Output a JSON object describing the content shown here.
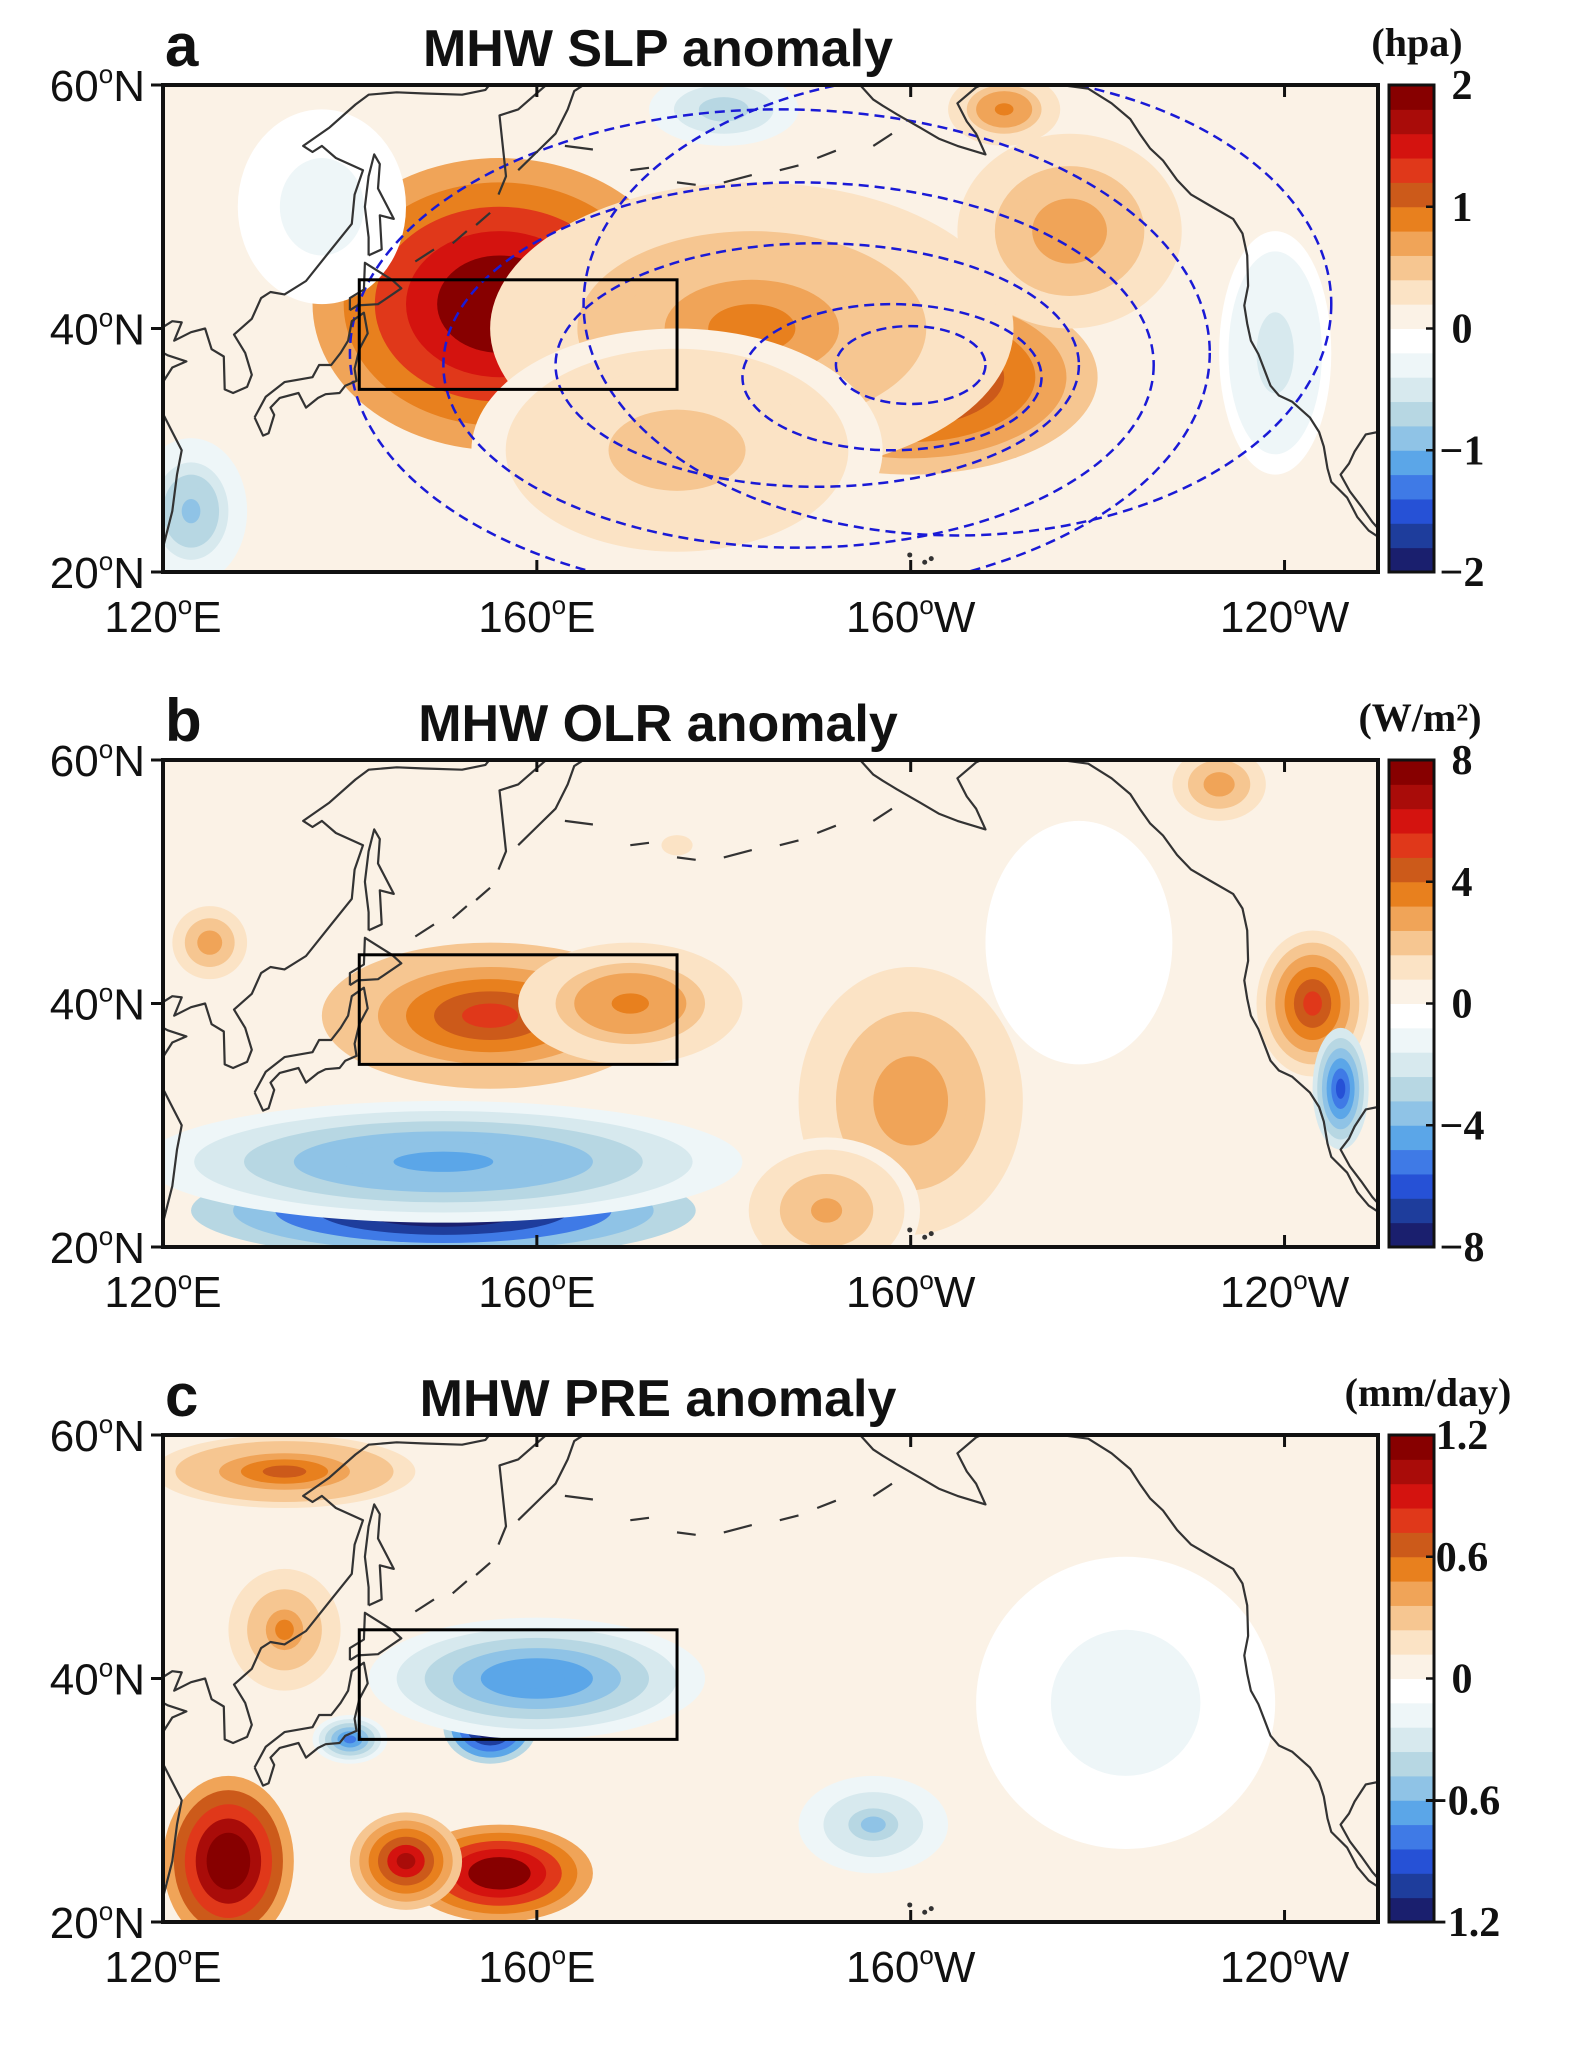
{
  "figure": {
    "panels": [
      {
        "letter": "a",
        "title": "MHW SLP anomaly",
        "units": "(hpa)",
        "colorbar": {
          "min": -2,
          "max": 2,
          "labels": [
            "2",
            "1",
            "0",
            "−1",
            "−2"
          ],
          "label_values": [
            2,
            1,
            0,
            -1,
            -2
          ]
        },
        "blobs": [
          {
            "lon": 156,
            "lat": 42,
            "rx": 20,
            "ry": 12,
            "value": 2.2
          },
          {
            "lon": 200,
            "lat": 36,
            "rx": 20,
            "ry": 8,
            "value": 1.4
          },
          {
            "lon": 183,
            "lat": 40,
            "rx": 28,
            "ry": 12,
            "value": 0.8
          },
          {
            "lon": 217,
            "lat": 48,
            "rx": 12,
            "ry": 8,
            "value": 0.7
          },
          {
            "lon": 175,
            "lat": 30,
            "rx": 22,
            "ry": 10,
            "value": 0.5
          },
          {
            "lon": 210,
            "lat": 58,
            "rx": 6,
            "ry": 3,
            "value": 0.9
          },
          {
            "lon": 180,
            "lat": 58,
            "rx": 8,
            "ry": 3,
            "value": -0.8
          },
          {
            "lon": 239,
            "lat": 38,
            "rx": 6,
            "ry": 10,
            "value": -0.5
          },
          {
            "lon": 123,
            "lat": 25,
            "rx": 6,
            "ry": 6,
            "value": -0.9
          },
          {
            "lon": 137,
            "lat": 50,
            "rx": 9,
            "ry": 8,
            "value": -0.3
          }
        ],
        "contours": [
          {
            "lon": 200,
            "lat": 37,
            "rx": 8,
            "ry": 3.2
          },
          {
            "lon": 198,
            "lat": 36,
            "rx": 16,
            "ry": 6
          },
          {
            "lon": 190,
            "lat": 37,
            "rx": 28,
            "ry": 10
          },
          {
            "lon": 188,
            "lat": 37,
            "rx": 38,
            "ry": 15
          },
          {
            "lon": 186,
            "lat": 38,
            "rx": 46,
            "ry": 20
          },
          {
            "lon": 205,
            "lat": 42,
            "rx": 40,
            "ry": 19
          }
        ]
      },
      {
        "letter": "b",
        "title": "MHW OLR anomaly",
        "units": "(W/m²)",
        "colorbar": {
          "min": -8,
          "max": 8,
          "labels": [
            "8",
            "4",
            "0",
            "−4",
            "−8"
          ],
          "label_values": [
            8,
            4,
            0,
            -4,
            -8
          ]
        },
        "blobs": [
          {
            "lon": 155,
            "lat": 39,
            "rx": 18,
            "ry": 6,
            "value": 5.5
          },
          {
            "lon": 170,
            "lat": 40,
            "rx": 12,
            "ry": 5,
            "value": 3.5
          },
          {
            "lon": 200,
            "lat": 32,
            "rx": 12,
            "ry": 11,
            "value": 3.0
          },
          {
            "lon": 191,
            "lat": 23,
            "rx": 10,
            "ry": 6,
            "value": 2.5
          },
          {
            "lon": 243,
            "lat": 40,
            "rx": 6,
            "ry": 6,
            "value": 5.0
          },
          {
            "lon": 233,
            "lat": 58,
            "rx": 5,
            "ry": 3,
            "value": 3.0
          },
          {
            "lon": 125,
            "lat": 45,
            "rx": 4,
            "ry": 3,
            "value": 3.0
          },
          {
            "lon": 150,
            "lat": 23,
            "rx": 27,
            "ry": 4,
            "value": -9.0
          },
          {
            "lon": 150,
            "lat": 27,
            "rx": 32,
            "ry": 5,
            "value": -4.5
          },
          {
            "lon": 246,
            "lat": 33,
            "rx": 3,
            "ry": 5,
            "value": -6.0
          },
          {
            "lon": 175,
            "lat": 53,
            "rx": 10,
            "ry": 5,
            "value": 0.8
          },
          {
            "lon": 218,
            "lat": 45,
            "rx": 10,
            "ry": 10,
            "value": -0.8
          }
        ]
      },
      {
        "letter": "c",
        "title": "MHW PRE anomaly",
        "units": "(mm/day)",
        "colorbar": {
          "min": -1.2,
          "max": 1.2,
          "labels": [
            "1.2",
            "0.6",
            "0",
            "−0.6",
            "−1.2"
          ],
          "label_values": [
            1.2,
            0.6,
            0,
            -0.6,
            -1.2
          ]
        },
        "blobs": [
          {
            "lon": 127,
            "lat": 25,
            "rx": 7,
            "ry": 7,
            "value": 1.4
          },
          {
            "lon": 156,
            "lat": 24,
            "rx": 10,
            "ry": 4,
            "value": 1.3
          },
          {
            "lon": 146,
            "lat": 25,
            "rx": 6,
            "ry": 4,
            "value": 1.0
          },
          {
            "lon": 133,
            "lat": 57,
            "rx": 14,
            "ry": 3,
            "value": 0.6
          },
          {
            "lon": 133,
            "lat": 44,
            "rx": 6,
            "ry": 5,
            "value": 0.5
          },
          {
            "lon": 155,
            "lat": 36,
            "rx": 5,
            "ry": 3,
            "value": -1.4
          },
          {
            "lon": 168,
            "lat": 40,
            "rx": 7,
            "ry": 3,
            "value": -1.3
          },
          {
            "lon": 160,
            "lat": 40,
            "rx": 18,
            "ry": 5,
            "value": -0.7
          },
          {
            "lon": 140,
            "lat": 35,
            "rx": 4,
            "ry": 2,
            "value": -0.8
          },
          {
            "lon": 196,
            "lat": 28,
            "rx": 8,
            "ry": 4,
            "value": -0.5
          },
          {
            "lon": 223,
            "lat": 38,
            "rx": 16,
            "ry": 12,
            "value": -0.2
          }
        ]
      }
    ],
    "x_ticks": [
      {
        "lon": 120,
        "num": "120",
        "sup": "o",
        "hemi": "E"
      },
      {
        "lon": 160,
        "num": "160",
        "sup": "o",
        "hemi": "E"
      },
      {
        "lon": 200,
        "num": "160",
        "sup": "o",
        "hemi": "W"
      },
      {
        "lon": 240,
        "num": "120",
        "sup": "o",
        "hemi": "W"
      }
    ],
    "y_ticks": [
      {
        "lat": 60,
        "num": "60",
        "sup": "o",
        "hemi": "N"
      },
      {
        "lat": 40,
        "num": "40",
        "sup": "o",
        "hemi": "N"
      },
      {
        "lat": 20,
        "num": "20",
        "sup": "o",
        "hemi": "N"
      }
    ],
    "box_region": {
      "lon_min": 141,
      "lon_max": 175,
      "lat_min": 35,
      "lat_max": 44
    },
    "colors": {
      "axis": "#111111",
      "coast": "#333333",
      "contour": "#1a1ad6",
      "box": "#000000",
      "ocean_zero": "#ffffff"
    },
    "palette": [
      "#1a1f6e",
      "#1e3d9c",
      "#2651d6",
      "#3f7ae6",
      "#5ba6e8",
      "#8fc3e6",
      "#b7d7e3",
      "#d7e9ee",
      "#eef6f8",
      "#ffffff",
      "#fbf2e6",
      "#fbe3c5",
      "#f6c691",
      "#f0a458",
      "#e8801e",
      "#cc5a1a",
      "#e0381a",
      "#d4130f",
      "#a90c09",
      "#870000"
    ]
  },
  "chart_data": [
    {
      "type": "heatmap",
      "title": "MHW SLP anomaly",
      "units": "(hpa)",
      "x_domain_lon": [
        120,
        250
      ],
      "y_domain_lat": [
        20,
        60
      ],
      "colorbar_range": [
        -2,
        2
      ],
      "colorbar_ticks": [
        2,
        1,
        0,
        -1,
        -2
      ],
      "x_ticks": [
        "120°E",
        "160°E",
        "160°W",
        "120°W"
      ],
      "y_ticks": [
        "60°N",
        "40°N",
        "20°N"
      ],
      "features": "Positive SLP anomaly centered near 40N,155E (~2 hPa) extending east to ~135W; dashed blue contours overlay the North Pacific"
    },
    {
      "type": "heatmap",
      "title": "MHW OLR anomaly",
      "units": "(W/m²)",
      "x_domain_lon": [
        120,
        250
      ],
      "y_domain_lat": [
        20,
        60
      ],
      "colorbar_range": [
        -8,
        8
      ],
      "colorbar_ticks": [
        8,
        4,
        0,
        -4,
        -8
      ],
      "x_ticks": [
        "120°E",
        "160°E",
        "160°W",
        "120°W"
      ],
      "y_ticks": [
        "60°N",
        "40°N",
        "20°N"
      ],
      "features": "Positive OLR anomaly (~6 W/m2) in box 35-44N,141-175E; strong negative (<-8) near 20-27N,125-170E"
    },
    {
      "type": "heatmap",
      "title": "MHW PRE anomaly",
      "units": "(mm/day)",
      "x_domain_lon": [
        120,
        250
      ],
      "y_domain_lat": [
        20,
        60
      ],
      "colorbar_range": [
        -1.2,
        1.2
      ],
      "colorbar_ticks": [
        1.2,
        0.6,
        0,
        -0.6,
        -1.2
      ],
      "x_ticks": [
        "120°E",
        "160°E",
        "160°W",
        "120°W"
      ],
      "y_ticks": [
        "60°N",
        "40°N",
        "20°N"
      ],
      "features": "Negative precipitation anomaly (~-1.2 mm/day) within box; positive (>1.2) south of Japan 20-28N"
    }
  ]
}
